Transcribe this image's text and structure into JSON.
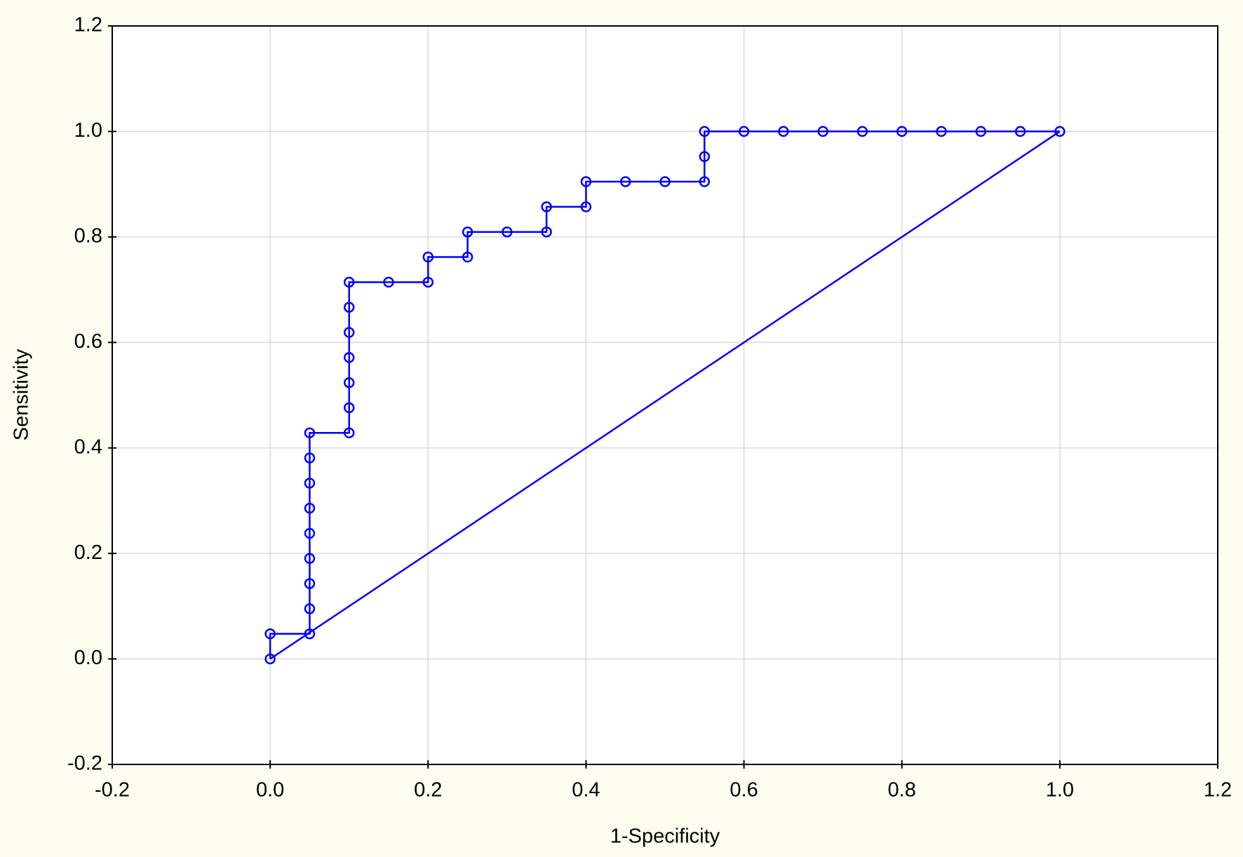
{
  "chart_data": {
    "type": "line",
    "xlabel": "1-Specificity",
    "ylabel": "Sensitivity",
    "xlim": [
      -0.2,
      1.2
    ],
    "ylim": [
      -0.2,
      1.2
    ],
    "xticks": [
      -0.2,
      {
        "value": 0,
        "label": "0.0"
      },
      0.2,
      0.4,
      0.6,
      0.8,
      {
        "value": 1,
        "label": "1.0"
      },
      1.2
    ],
    "yticks": [
      -0.2,
      {
        "value": 0,
        "label": "0.0"
      },
      0.2,
      0.4,
      0.6,
      0.8,
      {
        "value": 1,
        "label": "1.0"
      },
      1.2
    ],
    "grid": true,
    "series": [
      {
        "color": "#0000ff",
        "markers": true,
        "x": [
          0,
          0,
          0.05,
          0.05,
          0.05,
          0.05,
          0.05,
          0.05,
          0.05,
          0.05,
          0.05,
          0.1,
          0.1,
          0.1,
          0.1,
          0.1,
          0.1,
          0.1,
          0.15,
          0.2,
          0.2,
          0.25,
          0.25,
          0.3,
          0.35,
          0.35,
          0.4,
          0.4,
          0.45,
          0.5,
          0.55,
          0.55,
          0.55,
          0.6,
          0.65,
          0.7,
          0.75,
          0.8,
          0.85,
          0.9,
          0.95,
          1
        ],
        "values": [
          0,
          0.0476,
          0.0476,
          0.0952,
          0.1429,
          0.1905,
          0.2381,
          0.2857,
          0.3333,
          0.381,
          0.4286,
          0.4286,
          0.4762,
          0.5238,
          0.5714,
          0.619,
          0.6667,
          0.7143,
          0.7143,
          0.7143,
          0.7619,
          0.7619,
          0.8095,
          0.8095,
          0.8095,
          0.8571,
          0.8571,
          0.9048,
          0.9048,
          0.9048,
          0.9048,
          0.9524,
          1,
          1,
          1,
          1,
          1,
          1,
          1,
          1,
          1,
          1
        ]
      },
      {
        "color": "#0000ff",
        "markers": false,
        "x": [
          0,
          1
        ],
        "values": [
          0,
          1
        ]
      }
    ]
  }
}
